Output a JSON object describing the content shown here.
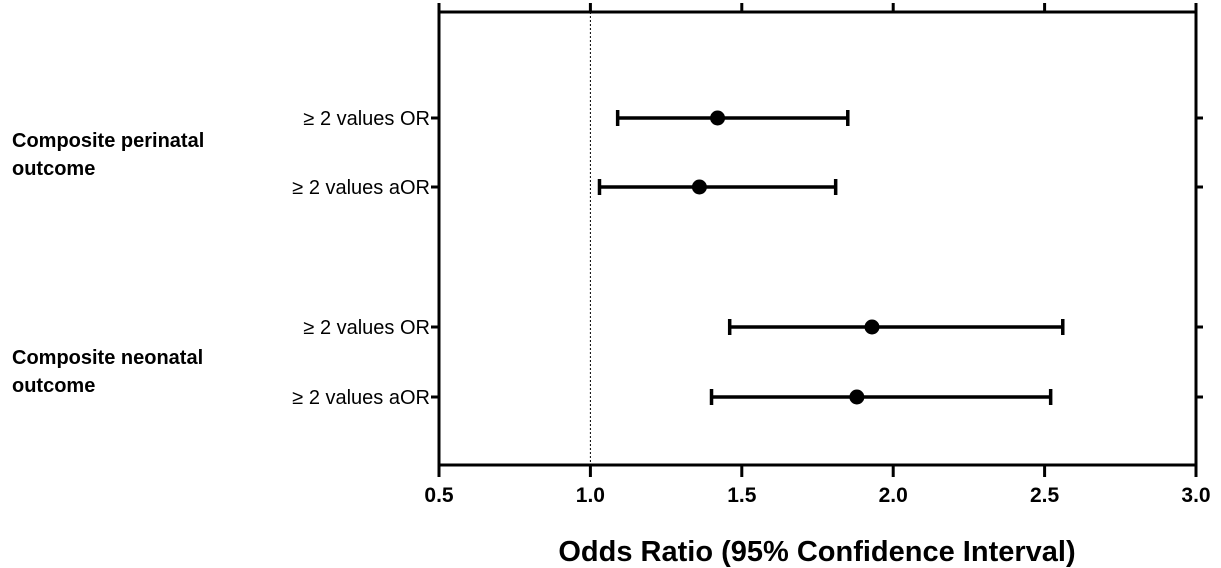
{
  "chart_data": {
    "type": "forest",
    "xlabel": "Odds Ratio (95% Confidence Interval)",
    "xlim": [
      0.5,
      3.0
    ],
    "xticks": [
      0.5,
      1.0,
      1.5,
      2.0,
      2.5,
      3.0
    ],
    "xtick_labels": [
      "0.5",
      "1.0",
      "1.5",
      "2.0",
      "2.5",
      "3.0"
    ],
    "reference_line": 1.0,
    "groups": [
      {
        "label_lines": [
          "Composite perinatal",
          "outcome"
        ],
        "rows": [
          {
            "label": "≥ 2 values OR",
            "estimate": 1.42,
            "lower": 1.09,
            "upper": 1.85
          },
          {
            "label": "≥ 2 values aOR",
            "estimate": 1.36,
            "lower": 1.03,
            "upper": 1.81
          }
        ]
      },
      {
        "label_lines": [
          "Composite neonatal",
          "outcome"
        ],
        "rows": [
          {
            "label": "≥ 2 values OR",
            "estimate": 1.93,
            "lower": 1.46,
            "upper": 2.56
          },
          {
            "label": "≥ 2 values aOR",
            "estimate": 1.88,
            "lower": 1.4,
            "upper": 2.52
          }
        ]
      }
    ]
  }
}
